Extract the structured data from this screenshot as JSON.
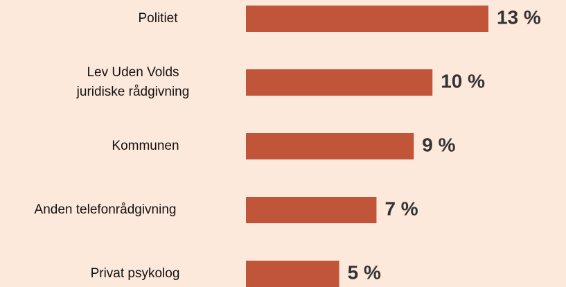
{
  "chart_data": {
    "type": "bar",
    "orientation": "horizontal",
    "categories": [
      "Politiet",
      [
        "Lev Uden Volds",
        "juridiske rådgivning"
      ],
      "Kommunen",
      "Anden telefonrådgivning",
      "Privat psykolog"
    ],
    "values": [
      13,
      10,
      9,
      7,
      5
    ],
    "value_labels": [
      "13 %",
      "10 %",
      "9 %",
      "7 %",
      "5 %"
    ],
    "color": "#c1553a"
  }
}
